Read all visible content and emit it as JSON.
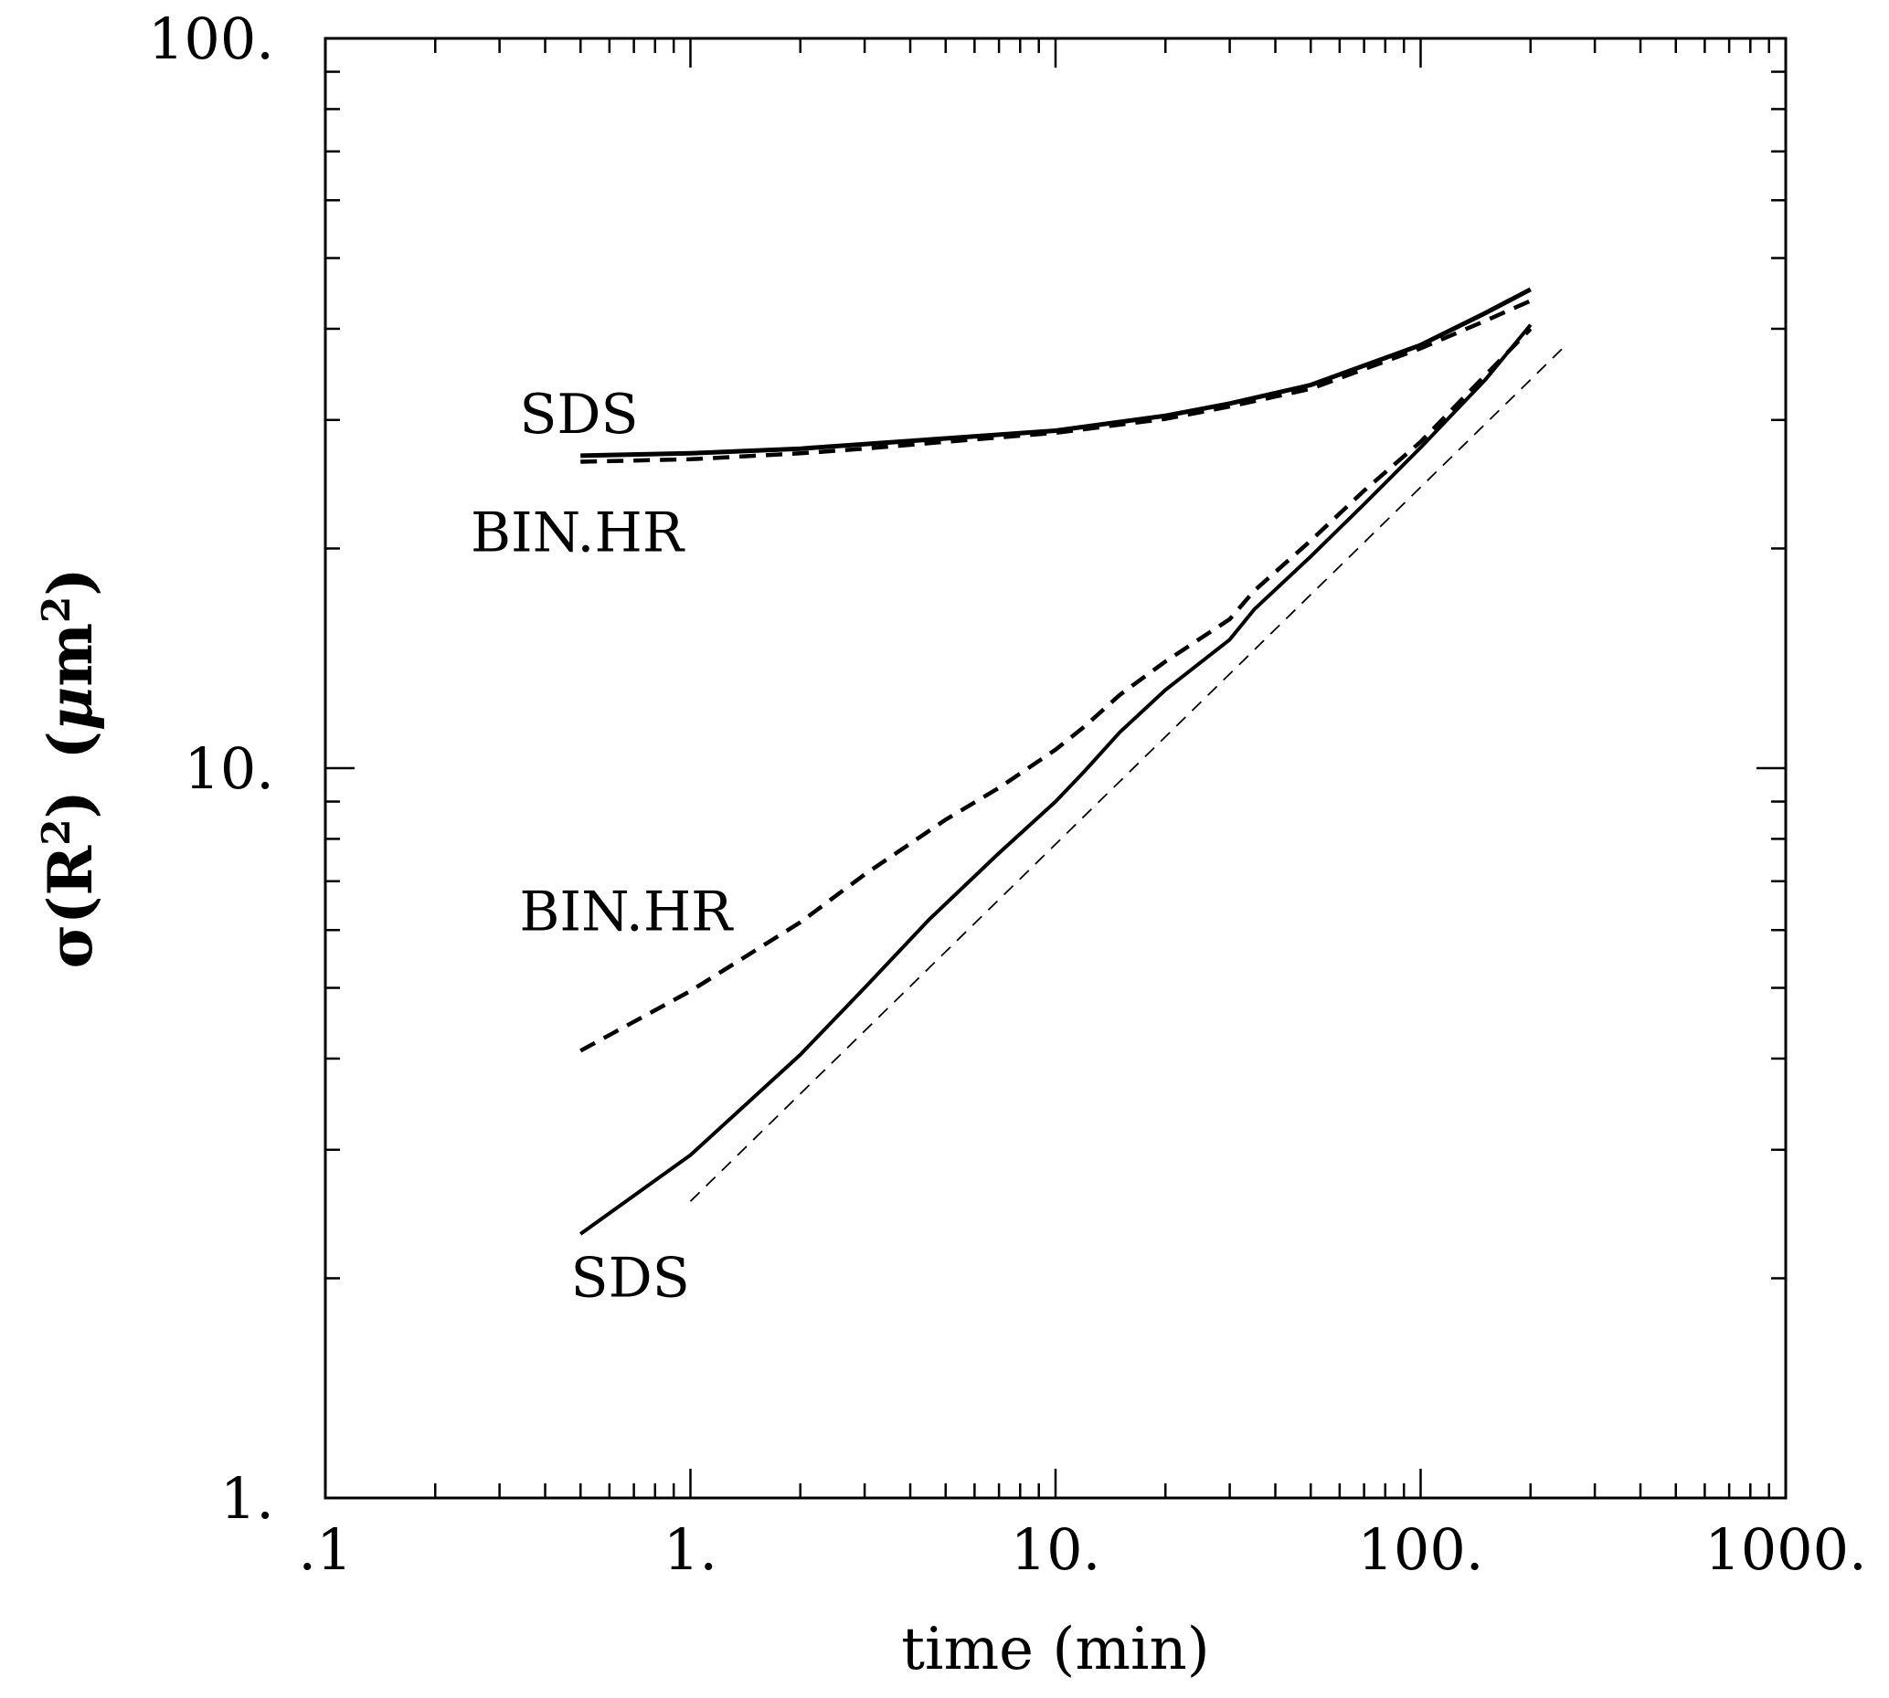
{
  "chart_data": {
    "type": "line",
    "title": "",
    "xlabel": "time (min)",
    "ylabel": "σ(R²) (μm²)",
    "ylabel_parts": {
      "sigma": "σ(R",
      "sup1": "2",
      "close": ")",
      "units_open": "(",
      "mu": "μ",
      "m": "m",
      "sup2": "2",
      "units_close": ")"
    },
    "x_scale": "log",
    "y_scale": "log",
    "xlim": [
      0.1,
      1000
    ],
    "ylim": [
      1,
      100
    ],
    "x_ticks": [
      {
        "value": 0.1,
        "label": ".1"
      },
      {
        "value": 1,
        "label": "1."
      },
      {
        "value": 10,
        "label": "10."
      },
      {
        "value": 100,
        "label": "100."
      },
      {
        "value": 1000,
        "label": "1000."
      }
    ],
    "y_ticks": [
      {
        "value": 1,
        "label": "1."
      },
      {
        "value": 10,
        "label": "10."
      },
      {
        "value": 100,
        "label": "100."
      }
    ],
    "grid": false,
    "series": [
      {
        "style": "solid-thick",
        "x": [
          0.5,
          1,
          2,
          3,
          5,
          10,
          20,
          30,
          50,
          100,
          150,
          200
        ],
        "y": [
          26.8,
          27.0,
          27.4,
          27.8,
          28.3,
          29.0,
          30.4,
          31.6,
          33.5,
          38.0,
          42.0,
          45.3
        ]
      },
      {
        "style": "dashed-thick",
        "x": [
          0.5,
          1,
          2,
          3,
          5,
          10,
          20,
          30,
          50,
          100,
          150,
          200
        ],
        "y": [
          26.3,
          26.5,
          27.0,
          27.4,
          28.0,
          28.8,
          30.1,
          31.3,
          33.1,
          37.6,
          41.0,
          43.7
        ]
      },
      {
        "style": "dashed-thick",
        "x": [
          0.5,
          1,
          2,
          3,
          5,
          7,
          10,
          12,
          15,
          20,
          30,
          35,
          50,
          70,
          100,
          150,
          200
        ],
        "y": [
          4.1,
          4.95,
          6.15,
          7.15,
          8.5,
          9.4,
          10.6,
          11.4,
          12.6,
          14.0,
          16.0,
          17.5,
          20.5,
          24.0,
          28.0,
          34.5,
          40.0
        ]
      },
      {
        "style": "solid",
        "x": [
          0.5,
          1,
          2,
          3,
          4.5,
          7,
          10,
          12,
          15,
          20,
          30,
          35,
          50,
          70,
          100,
          150,
          200
        ],
        "y": [
          2.3,
          2.95,
          4.05,
          5.0,
          6.2,
          7.65,
          9.0,
          9.9,
          11.2,
          12.8,
          15.0,
          16.5,
          19.5,
          23.0,
          27.5,
          34.0,
          40.5
        ]
      },
      {
        "style": "dashed-thin",
        "x": [
          1,
          250
        ],
        "y": [
          2.55,
          38.0
        ]
      }
    ],
    "annotations": [
      {
        "text": "SDS",
        "x": 0.34,
        "y": 30.5
      },
      {
        "text": "BIN.HR",
        "x": 0.25,
        "y": 21.0
      },
      {
        "text": "BIN.HR",
        "x": 0.34,
        "y": 6.35
      },
      {
        "text": "SDS",
        "x": 0.47,
        "y": 2.0
      }
    ]
  }
}
